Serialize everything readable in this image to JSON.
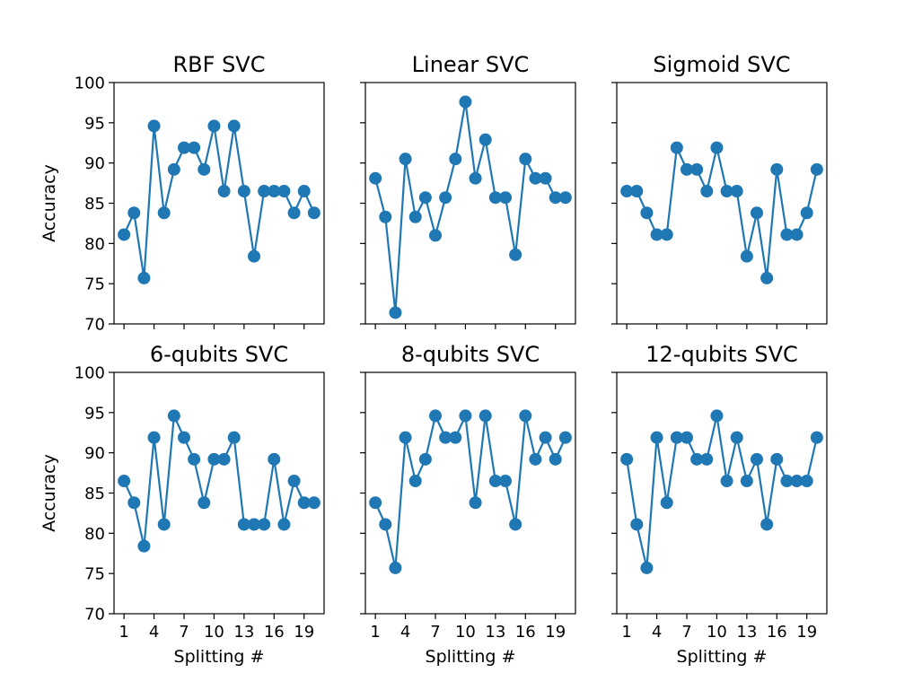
{
  "figure": {
    "ylabel": "Accuracy",
    "xlabel": "Splitting #"
  },
  "chart_data": [
    {
      "type": "line",
      "title": "RBF SVC",
      "x": [
        1,
        2,
        3,
        4,
        5,
        6,
        7,
        8,
        9,
        10,
        11,
        12,
        13,
        14,
        15,
        16,
        17,
        18,
        19,
        20
      ],
      "values": [
        81.1,
        83.8,
        75.7,
        94.6,
        83.8,
        89.2,
        91.9,
        91.9,
        89.2,
        94.6,
        86.5,
        94.6,
        86.5,
        78.4,
        86.5,
        86.5,
        86.5,
        83.8,
        86.5,
        83.8
      ],
      "xlabel": "",
      "ylabel": "Accuracy",
      "ylim": [
        70,
        100
      ],
      "xlim": [
        0,
        21
      ],
      "yticks": [
        70,
        75,
        80,
        85,
        90,
        95,
        100
      ],
      "xticks": [
        1,
        4,
        7,
        10,
        13,
        16,
        19
      ],
      "show_ytick_labels": true,
      "show_xtick_labels": false,
      "color": "#1f77b4"
    },
    {
      "type": "line",
      "title": "Linear SVC",
      "x": [
        1,
        2,
        3,
        4,
        5,
        6,
        7,
        8,
        9,
        10,
        11,
        12,
        13,
        14,
        15,
        16,
        17,
        18,
        19,
        20
      ],
      "values": [
        88.1,
        83.3,
        71.4,
        90.5,
        83.3,
        85.7,
        81.0,
        85.7,
        90.5,
        97.6,
        88.1,
        92.9,
        85.7,
        85.7,
        78.6,
        90.5,
        88.1,
        88.1,
        85.7,
        85.7
      ],
      "xlabel": "",
      "ylabel": "",
      "ylim": [
        70,
        100
      ],
      "xlim": [
        0,
        21
      ],
      "yticks": [
        70,
        75,
        80,
        85,
        90,
        95,
        100
      ],
      "xticks": [
        1,
        4,
        7,
        10,
        13,
        16,
        19
      ],
      "show_ytick_labels": false,
      "show_xtick_labels": false,
      "color": "#1f77b4"
    },
    {
      "type": "line",
      "title": "Sigmoid SVC",
      "x": [
        1,
        2,
        3,
        4,
        5,
        6,
        7,
        8,
        9,
        10,
        11,
        12,
        13,
        14,
        15,
        16,
        17,
        18,
        19,
        20
      ],
      "values": [
        86.5,
        86.5,
        83.8,
        81.1,
        81.1,
        91.9,
        89.2,
        89.2,
        86.5,
        91.9,
        86.5,
        86.5,
        78.4,
        83.8,
        75.7,
        89.2,
        81.1,
        81.1,
        83.8,
        89.2
      ],
      "xlabel": "",
      "ylabel": "",
      "ylim": [
        70,
        100
      ],
      "xlim": [
        0,
        21
      ],
      "yticks": [
        70,
        75,
        80,
        85,
        90,
        95,
        100
      ],
      "xticks": [
        1,
        4,
        7,
        10,
        13,
        16,
        19
      ],
      "show_ytick_labels": false,
      "show_xtick_labels": false,
      "color": "#1f77b4"
    },
    {
      "type": "line",
      "title": "6-qubits SVC",
      "x": [
        1,
        2,
        3,
        4,
        5,
        6,
        7,
        8,
        9,
        10,
        11,
        12,
        13,
        14,
        15,
        16,
        17,
        18,
        19,
        20
      ],
      "values": [
        86.5,
        83.8,
        78.4,
        91.9,
        81.1,
        94.6,
        91.9,
        89.2,
        83.8,
        89.2,
        89.2,
        91.9,
        81.1,
        81.1,
        81.1,
        89.2,
        81.1,
        86.5,
        83.8,
        83.8
      ],
      "xlabel": "Splitting #",
      "ylabel": "Accuracy",
      "ylim": [
        70,
        100
      ],
      "xlim": [
        0,
        21
      ],
      "yticks": [
        70,
        75,
        80,
        85,
        90,
        95,
        100
      ],
      "xticks": [
        1,
        4,
        7,
        10,
        13,
        16,
        19
      ],
      "show_ytick_labels": true,
      "show_xtick_labels": true,
      "color": "#1f77b4"
    },
    {
      "type": "line",
      "title": "8-qubits SVC",
      "x": [
        1,
        2,
        3,
        4,
        5,
        6,
        7,
        8,
        9,
        10,
        11,
        12,
        13,
        14,
        15,
        16,
        17,
        18,
        19,
        20
      ],
      "values": [
        83.8,
        81.1,
        75.7,
        91.9,
        86.5,
        89.2,
        94.6,
        91.9,
        91.9,
        94.6,
        83.8,
        94.6,
        86.5,
        86.5,
        81.1,
        94.6,
        89.2,
        91.9,
        89.2,
        91.9
      ],
      "xlabel": "Splitting #",
      "ylabel": "",
      "ylim": [
        70,
        100
      ],
      "xlim": [
        0,
        21
      ],
      "yticks": [
        70,
        75,
        80,
        85,
        90,
        95,
        100
      ],
      "xticks": [
        1,
        4,
        7,
        10,
        13,
        16,
        19
      ],
      "show_ytick_labels": false,
      "show_xtick_labels": true,
      "color": "#1f77b4"
    },
    {
      "type": "line",
      "title": "12-qubits SVC",
      "x": [
        1,
        2,
        3,
        4,
        5,
        6,
        7,
        8,
        9,
        10,
        11,
        12,
        13,
        14,
        15,
        16,
        17,
        18,
        19,
        20
      ],
      "values": [
        89.2,
        81.1,
        75.7,
        91.9,
        83.8,
        91.9,
        91.9,
        89.2,
        89.2,
        94.6,
        86.5,
        91.9,
        86.5,
        89.2,
        81.1,
        89.2,
        86.5,
        86.5,
        86.5,
        91.9
      ],
      "xlabel": "Splitting #",
      "ylabel": "",
      "ylim": [
        70,
        100
      ],
      "xlim": [
        0,
        21
      ],
      "yticks": [
        70,
        75,
        80,
        85,
        90,
        95,
        100
      ],
      "xticks": [
        1,
        4,
        7,
        10,
        13,
        16,
        19
      ],
      "show_ytick_labels": false,
      "show_xtick_labels": true,
      "color": "#1f77b4"
    }
  ]
}
